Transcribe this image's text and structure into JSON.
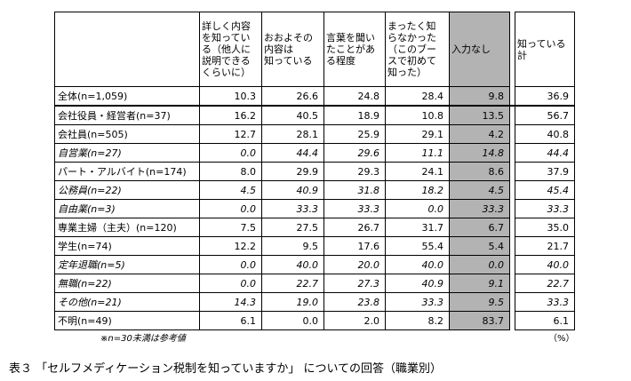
{
  "headers": [
    "詳しく内容\nを知ってい\nる（他人に\n説明できる\nくらいに）",
    "おおよその\n内容は\n知っている",
    "言葉を聞い\nたことがあ\nる程度",
    "まったく知\nらなかった\n（このブー\nスで初めて\n知った）",
    "入力なし",
    "知っている\n計"
  ],
  "rows": [
    {
      "label": "全体(n=1,059)",
      "italic": false,
      "values": [
        "10.3",
        "26.6",
        "24.8",
        "28.4",
        "9.8",
        "36.9"
      ]
    },
    {
      "label": "会社役員・経営者(n=37)",
      "italic": false,
      "values": [
        "16.2",
        "40.5",
        "18.9",
        "10.8",
        "13.5",
        "56.7"
      ]
    },
    {
      "label": "会社員(n=505)",
      "italic": false,
      "values": [
        "12.7",
        "28.1",
        "25.9",
        "29.1",
        "4.2",
        "40.8"
      ]
    },
    {
      "label": "自営業(n=27)",
      "italic": true,
      "values": [
        "0.0",
        "44.4",
        "29.6",
        "11.1",
        "14.8",
        "44.4"
      ]
    },
    {
      "label": "パート・アルバイト(n=174)",
      "italic": false,
      "values": [
        "8.0",
        "29.9",
        "29.3",
        "24.1",
        "8.6",
        "37.9"
      ]
    },
    {
      "label": "公務員(n=22)",
      "italic": true,
      "values": [
        "4.5",
        "40.9",
        "31.8",
        "18.2",
        "4.5",
        "45.4"
      ]
    },
    {
      "label": "自由業(n=3)",
      "italic": true,
      "values": [
        "0.0",
        "33.3",
        "33.3",
        "0.0",
        "33.3",
        "33.3"
      ]
    },
    {
      "label": "専業主婦（主夫）(n=120)",
      "italic": false,
      "values": [
        "7.5",
        "27.5",
        "26.7",
        "31.7",
        "6.7",
        "35.0"
      ]
    },
    {
      "label": "学生(n=74)",
      "italic": false,
      "values": [
        "12.2",
        "9.5",
        "17.6",
        "55.4",
        "5.4",
        "21.7"
      ]
    },
    {
      "label": "定年退職(n=5)",
      "italic": true,
      "values": [
        "0.0",
        "40.0",
        "20.0",
        "40.0",
        "0.0",
        "40.0"
      ]
    },
    {
      "label": "無職(n=22)",
      "italic": true,
      "values": [
        "0.0",
        "22.7",
        "27.3",
        "40.9",
        "9.1",
        "22.7"
      ]
    },
    {
      "label": "その他(n=21)",
      "italic": true,
      "values": [
        "14.3",
        "19.0",
        "23.8",
        "33.3",
        "9.5",
        "33.3"
      ]
    },
    {
      "label": "不明(n=49)",
      "italic": false,
      "values": [
        "6.1",
        "0.0",
        "2.0",
        "8.2",
        "83.7",
        "6.1"
      ]
    }
  ],
  "note": "※n=30未満は参考値",
  "unit": "（%）",
  "caption": "表３ 「セルフメディケーション税制を知っていますか」 についての回答（職業別）",
  "colors": {
    "no_input_shade": "#b3b3b3"
  }
}
